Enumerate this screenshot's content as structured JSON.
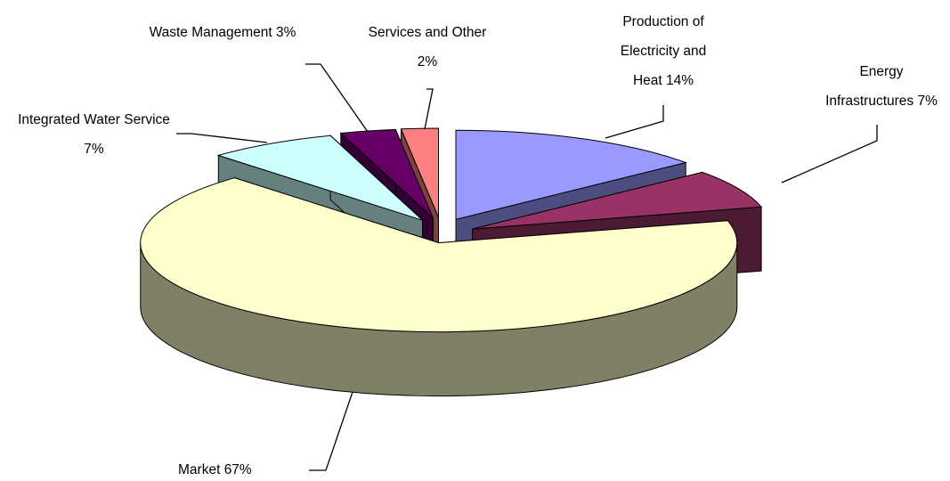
{
  "chart_data": {
    "type": "pie3d",
    "categories": [
      "Production of Electricity and Heat",
      "Energy Infrastructures",
      "Market",
      "Integrated Water Service",
      "Waste Management",
      "Services and Other"
    ],
    "values": [
      14,
      7,
      67,
      7,
      3,
      2
    ],
    "value_labels": [
      "14%",
      "7%",
      "67%",
      "7%",
      "3%",
      "2%"
    ],
    "colors": [
      "#9999ff",
      "#993366",
      "#ffffcc",
      "#ccffff",
      "#660066",
      "#ff8080"
    ]
  }
}
